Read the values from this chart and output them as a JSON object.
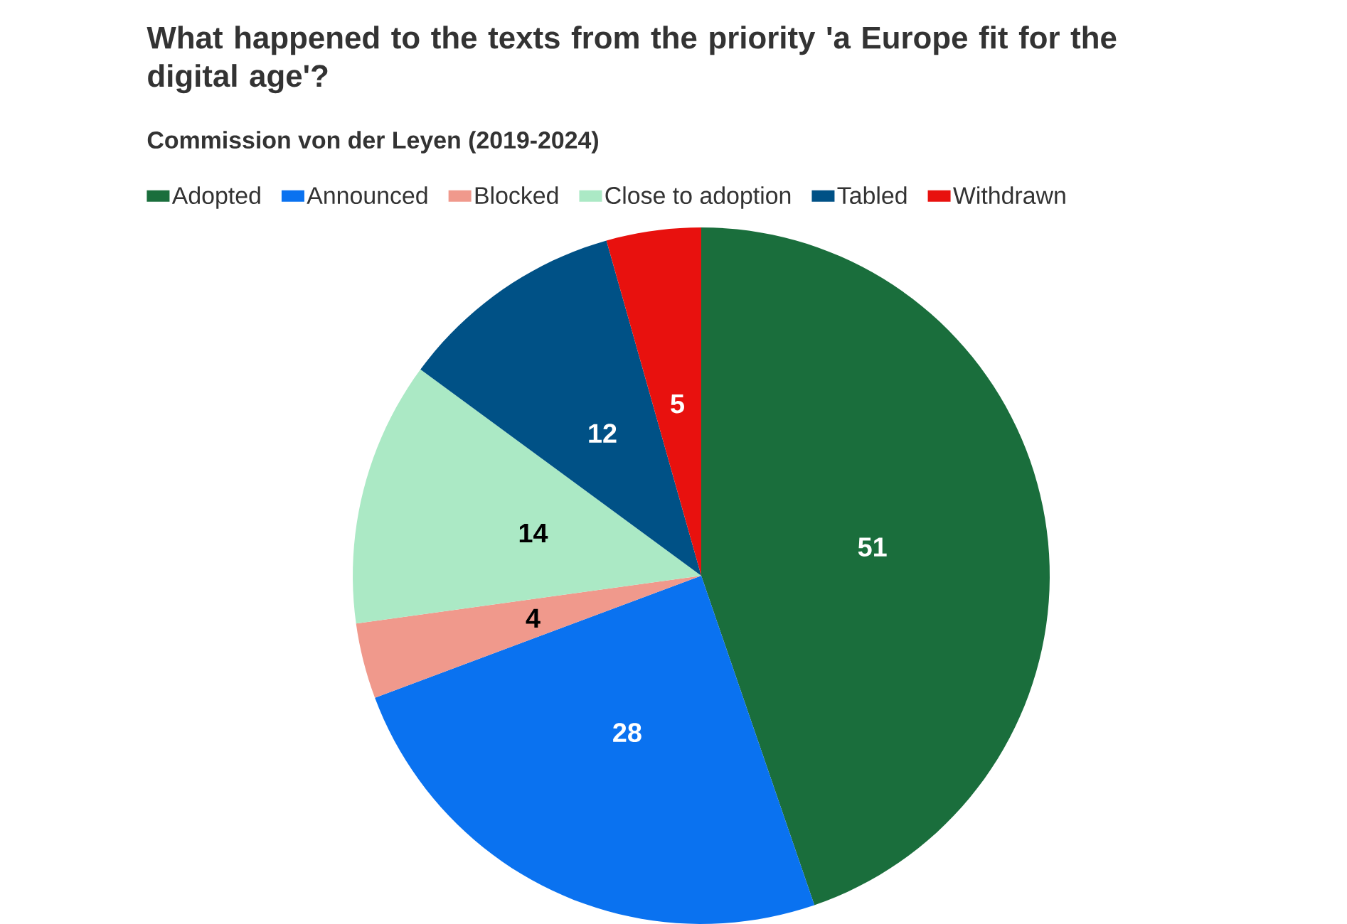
{
  "chart_data": {
    "type": "pie",
    "title": "What happened to the texts from the priority 'a Europe fit for the digital age'?",
    "subtitle": "Commission von der Leyen (2019-2024)",
    "categories": [
      "Adopted",
      "Announced",
      "Blocked",
      "Close to adoption",
      "Tabled",
      "Withdrawn"
    ],
    "values": [
      51,
      28,
      4,
      14,
      12,
      5
    ],
    "colors": [
      "#1a6e3c",
      "#0a72f0",
      "#f0998c",
      "#abe9c5",
      "#005186",
      "#e8110e"
    ],
    "data_labels": true,
    "legend": "top"
  }
}
